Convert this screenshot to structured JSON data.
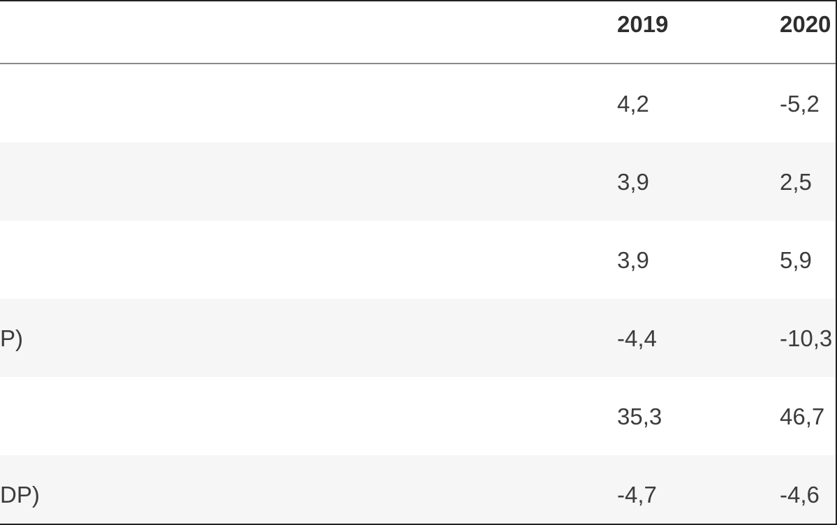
{
  "table": {
    "columns": [
      "2019",
      "2020"
    ],
    "rows": [
      {
        "label": "",
        "values": [
          "4,2",
          "-5,2"
        ]
      },
      {
        "label": "",
        "values": [
          "3,9",
          "2,5"
        ]
      },
      {
        "label": "",
        "values": [
          "3,9",
          "5,9"
        ]
      },
      {
        "label": "P)",
        "values": [
          "-4,4",
          "-10,3"
        ]
      },
      {
        "label": "",
        "values": [
          "35,3",
          "46,7"
        ]
      },
      {
        "label": "DP)",
        "values": [
          "-4,7",
          "-4,6"
        ]
      }
    ]
  }
}
